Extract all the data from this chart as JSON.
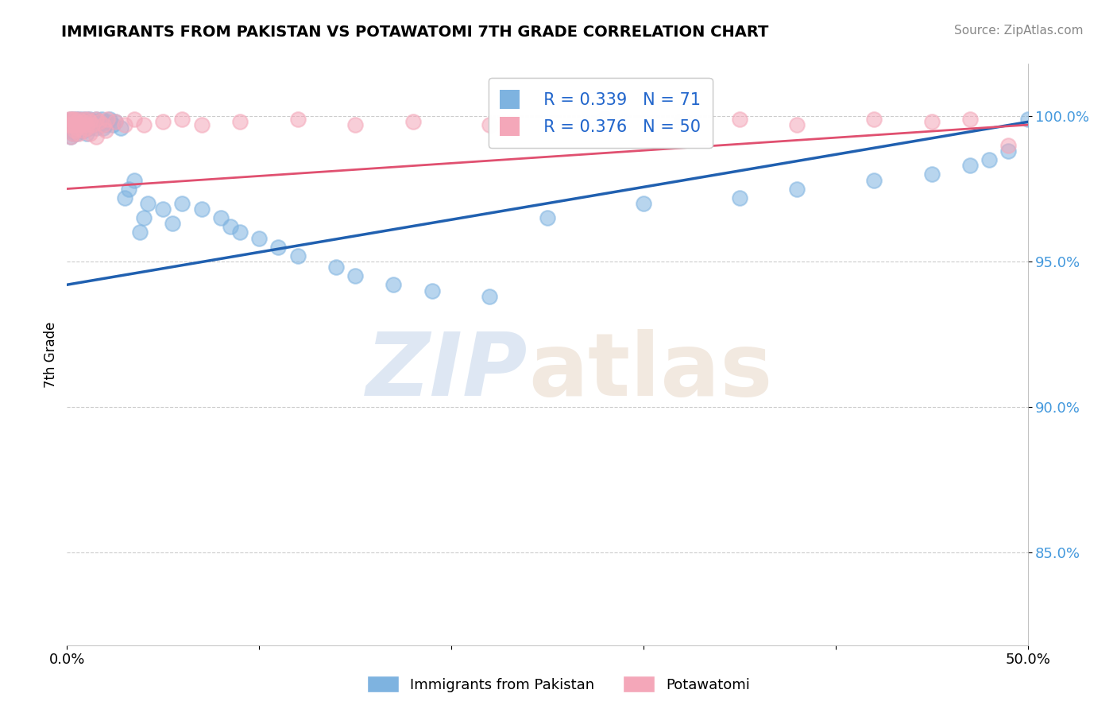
{
  "title": "IMMIGRANTS FROM PAKISTAN VS POTAWATOMI 7TH GRADE CORRELATION CHART",
  "source": "Source: ZipAtlas.com",
  "ylabel": "7th Grade",
  "xmin": 0.0,
  "xmax": 0.5,
  "ymin": 0.818,
  "ymax": 1.018,
  "yticks": [
    0.85,
    0.9,
    0.95,
    1.0
  ],
  "ytick_labels": [
    "85.0%",
    "90.0%",
    "95.0%",
    "100.0%"
  ],
  "xticks": [
    0.0,
    0.1,
    0.2,
    0.3,
    0.4,
    0.5
  ],
  "xtick_labels": [
    "0.0%",
    "",
    "",
    "",
    "",
    "50.0%"
  ],
  "legend_r_blue": "R = 0.339",
  "legend_n_blue": "N = 71",
  "legend_r_pink": "R = 0.376",
  "legend_n_pink": "N = 50",
  "blue_color": "#7EB3E0",
  "pink_color": "#F4A7B9",
  "blue_line_color": "#2060B0",
  "pink_line_color": "#E05070",
  "blue_line_y0": 0.942,
  "blue_line_y1": 0.998,
  "pink_line_y0": 0.975,
  "pink_line_y1": 0.997,
  "blue_scatter_x": [
    0.001,
    0.001,
    0.002,
    0.002,
    0.003,
    0.003,
    0.003,
    0.004,
    0.004,
    0.005,
    0.005,
    0.005,
    0.006,
    0.006,
    0.007,
    0.007,
    0.008,
    0.008,
    0.009,
    0.009,
    0.01,
    0.01,
    0.01,
    0.011,
    0.012,
    0.012,
    0.013,
    0.014,
    0.015,
    0.015,
    0.016,
    0.017,
    0.018,
    0.019,
    0.02,
    0.021,
    0.022,
    0.024,
    0.025,
    0.028,
    0.03,
    0.032,
    0.035,
    0.038,
    0.04,
    0.042,
    0.05,
    0.055,
    0.06,
    0.07,
    0.08,
    0.085,
    0.09,
    0.1,
    0.11,
    0.12,
    0.14,
    0.15,
    0.17,
    0.19,
    0.22,
    0.25,
    0.3,
    0.35,
    0.38,
    0.42,
    0.45,
    0.47,
    0.48,
    0.49,
    0.5
  ],
  "blue_scatter_y": [
    0.998,
    0.995,
    0.999,
    0.993,
    0.999,
    0.997,
    0.994,
    0.998,
    0.996,
    0.999,
    0.997,
    0.994,
    0.999,
    0.996,
    0.998,
    0.995,
    0.999,
    0.997,
    0.998,
    0.995,
    0.999,
    0.997,
    0.994,
    0.998,
    0.999,
    0.996,
    0.997,
    0.998,
    0.999,
    0.996,
    0.998,
    0.997,
    0.999,
    0.996,
    0.997,
    0.998,
    0.999,
    0.997,
    0.998,
    0.996,
    0.972,
    0.975,
    0.978,
    0.96,
    0.965,
    0.97,
    0.968,
    0.963,
    0.97,
    0.968,
    0.965,
    0.962,
    0.96,
    0.958,
    0.955,
    0.952,
    0.948,
    0.945,
    0.942,
    0.94,
    0.938,
    0.965,
    0.97,
    0.972,
    0.975,
    0.978,
    0.98,
    0.983,
    0.985,
    0.988,
    0.999
  ],
  "pink_scatter_x": [
    0.001,
    0.001,
    0.002,
    0.002,
    0.003,
    0.003,
    0.004,
    0.005,
    0.006,
    0.007,
    0.008,
    0.009,
    0.01,
    0.011,
    0.012,
    0.013,
    0.015,
    0.017,
    0.019,
    0.021,
    0.025,
    0.03,
    0.035,
    0.04,
    0.05,
    0.06,
    0.07,
    0.09,
    0.12,
    0.15,
    0.18,
    0.22,
    0.28,
    0.32,
    0.35,
    0.38,
    0.42,
    0.45,
    0.47,
    0.49,
    0.002,
    0.003,
    0.004,
    0.005,
    0.006,
    0.008,
    0.01,
    0.012,
    0.015,
    0.02
  ],
  "pink_scatter_y": [
    0.999,
    0.997,
    0.999,
    0.997,
    0.999,
    0.997,
    0.999,
    0.998,
    0.999,
    0.997,
    0.998,
    0.999,
    0.997,
    0.999,
    0.998,
    0.997,
    0.999,
    0.998,
    0.997,
    0.999,
    0.998,
    0.997,
    0.999,
    0.997,
    0.998,
    0.999,
    0.997,
    0.998,
    0.999,
    0.997,
    0.998,
    0.997,
    0.999,
    0.998,
    0.999,
    0.997,
    0.999,
    0.998,
    0.999,
    0.99,
    0.993,
    0.994,
    0.995,
    0.996,
    0.994,
    0.995,
    0.996,
    0.994,
    0.993,
    0.995
  ]
}
